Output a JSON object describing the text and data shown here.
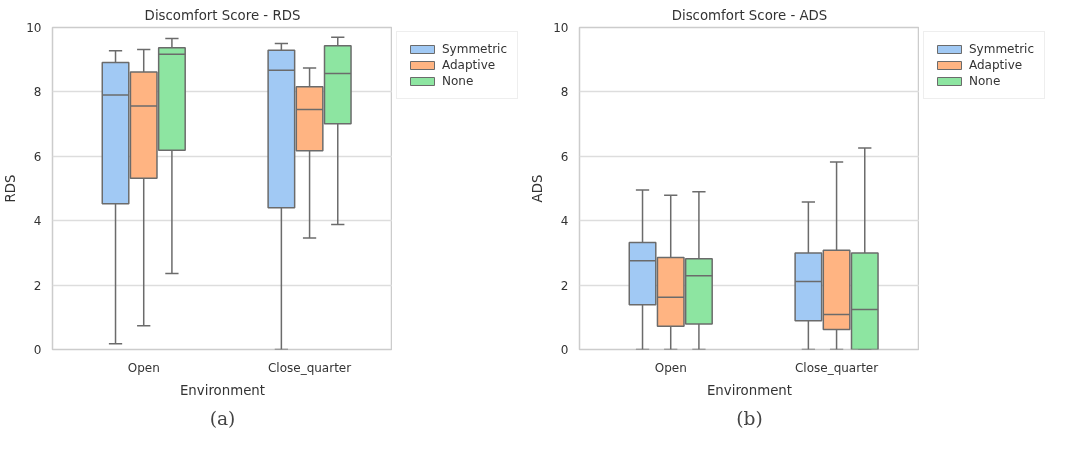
{
  "chart_data": [
    {
      "type": "box",
      "title": "Discomfort Score - RDS",
      "xlabel": "Environment",
      "ylabel": "RDS",
      "categories": [
        "Open",
        "Close_quarter"
      ],
      "ylim": [
        0,
        10
      ],
      "yticks": [
        0,
        2,
        4,
        6,
        8,
        10
      ],
      "grid": "y",
      "legend": "top right",
      "annotations": [
        "(a)"
      ],
      "series": [
        {
          "name": "Symmetric",
          "color": "#a1c9f4",
          "boxes": [
            {
              "low": 0.18,
              "q1": 4.53,
              "median": 7.9,
              "q3": 8.91,
              "high": 9.28
            },
            {
              "low": 0,
              "q1": 4.4,
              "median": 8.67,
              "q3": 9.29,
              "high": 9.5
            }
          ]
        },
        {
          "name": "Adaptive",
          "color": "#ffb482",
          "boxes": [
            {
              "low": 0.74,
              "q1": 5.32,
              "median": 7.56,
              "q3": 8.62,
              "high": 9.32
            },
            {
              "low": 3.46,
              "q1": 6.17,
              "median": 7.45,
              "q3": 8.16,
              "high": 8.74
            }
          ]
        },
        {
          "name": "None",
          "color": "#8de5a1",
          "boxes": [
            {
              "low": 2.36,
              "q1": 6.19,
              "median": 9.17,
              "q3": 9.37,
              "high": 9.66
            },
            {
              "low": 3.88,
              "q1": 7.01,
              "median": 8.57,
              "q3": 9.43,
              "high": 9.7
            }
          ]
        }
      ]
    },
    {
      "type": "box",
      "title": "Discomfort Score - ADS",
      "xlabel": "Environment",
      "ylabel": "ADS",
      "categories": [
        "Open",
        "Close_quarter"
      ],
      "ylim": [
        0,
        10
      ],
      "yticks": [
        0,
        2,
        4,
        6,
        8,
        10
      ],
      "grid": "y",
      "legend": "top right",
      "annotations": [
        "(b)"
      ],
      "series": [
        {
          "name": "Symmetric",
          "color": "#a1c9f4",
          "boxes": [
            {
              "low": 0,
              "q1": 1.39,
              "median": 2.76,
              "q3": 3.32,
              "high": 4.95
            },
            {
              "low": 0,
              "q1": 0.89,
              "median": 2.11,
              "q3": 3.0,
              "high": 4.58
            }
          ]
        },
        {
          "name": "Adaptive",
          "color": "#ffb482",
          "boxes": [
            {
              "low": 0,
              "q1": 0.72,
              "median": 1.62,
              "q3": 2.86,
              "high": 4.79
            },
            {
              "low": 0,
              "q1": 0.62,
              "median": 1.09,
              "q3": 3.08,
              "high": 5.82
            }
          ]
        },
        {
          "name": "None",
          "color": "#8de5a1",
          "boxes": [
            {
              "low": 0,
              "q1": 0.79,
              "median": 2.29,
              "q3": 2.82,
              "high": 4.9
            },
            {
              "low": 0,
              "q1": 0,
              "median": 1.24,
              "q3": 3.0,
              "high": 6.26
            }
          ]
        }
      ]
    }
  ]
}
